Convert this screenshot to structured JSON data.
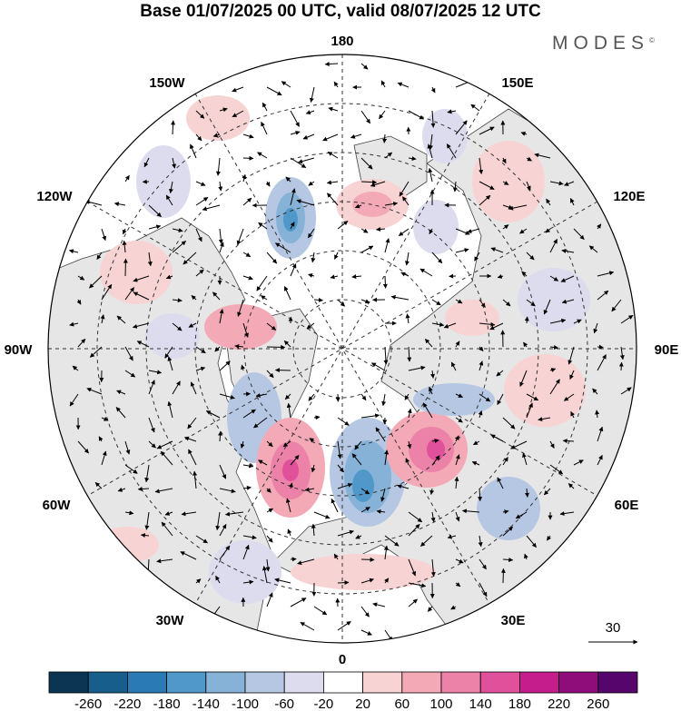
{
  "title": "Base 01/07/2025 00 UTC, valid 08/07/2025 12 UTC",
  "brand": "MODES",
  "brand_mark": "©",
  "longitude_labels": [
    "180",
    "150E",
    "120E",
    "90E",
    "60E",
    "30E",
    "0",
    "30W",
    "60W",
    "90W",
    "120W",
    "150W"
  ],
  "reference_vector": {
    "value": "30"
  },
  "colorbar": {
    "ticks": [
      "-260",
      "-220",
      "-180",
      "-140",
      "-100",
      "-60",
      "-20",
      "20",
      "60",
      "100",
      "140",
      "180",
      "220",
      "260"
    ],
    "colors": [
      "#0b3552",
      "#175e8c",
      "#2a7bb5",
      "#4f98c9",
      "#86b2d8",
      "#b6c7e3",
      "#dcdcee",
      "#ffffff",
      "#f8d3d3",
      "#f3aab6",
      "#ec82a8",
      "#e0509b",
      "#c51d8c",
      "#8e0d7b",
      "#55056b"
    ]
  }
}
